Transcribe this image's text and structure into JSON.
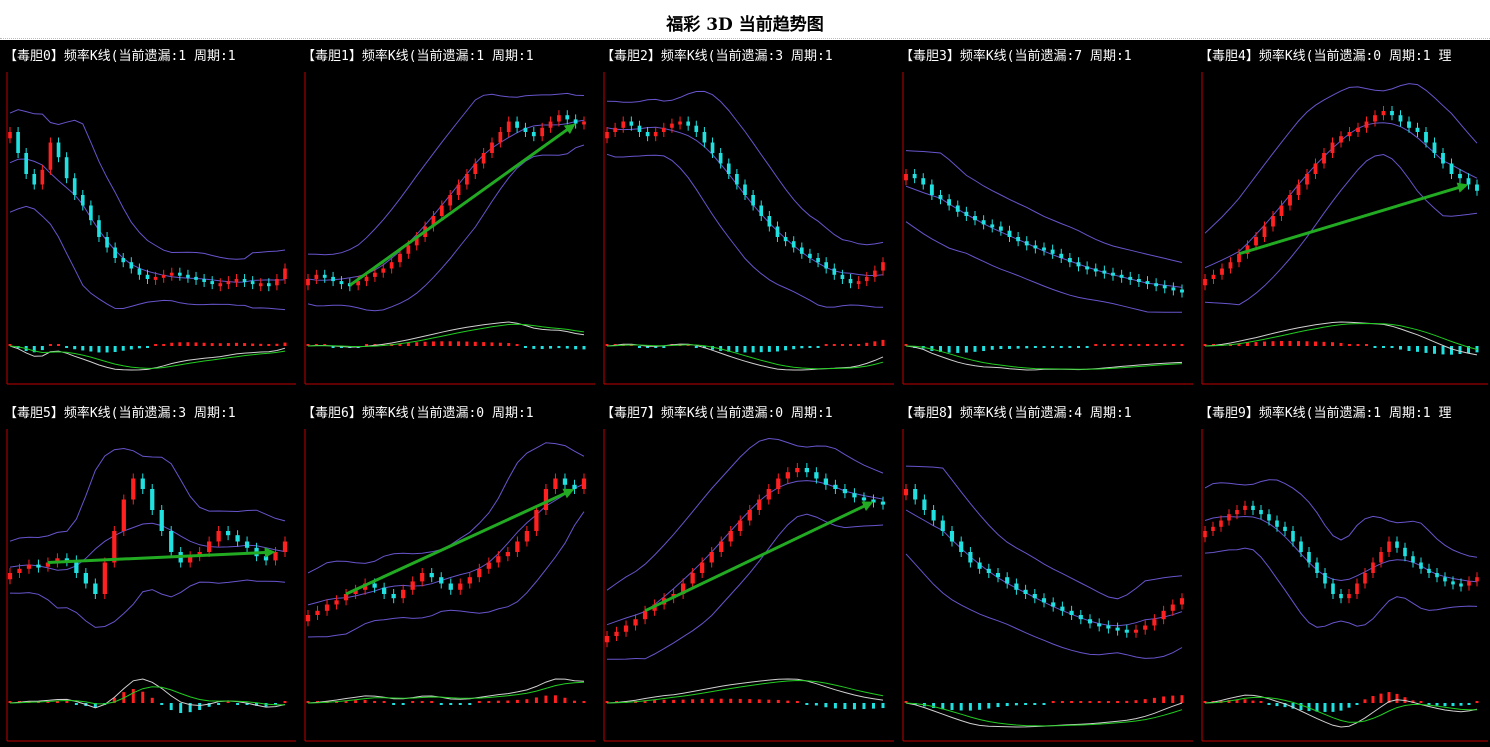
{
  "page": {
    "title": "福彩 3D 当前趋势图"
  },
  "colors": {
    "background": "#000000",
    "up_candle": "#ff2020",
    "down_candle": "#20e0e0",
    "band_line": "#6655cc",
    "axis": "#c00000",
    "trend_arrow": "#22aa22",
    "dif_line": "#d0d0d0",
    "dea_line": "#22cc22"
  },
  "chart_data": [
    {
      "type": "candlestick",
      "title": "【毒胆0】频率K线(当前遗漏:1 周期:1",
      "has_arrow": false,
      "closes": [
        80,
        70,
        60,
        55,
        62,
        75,
        68,
        58,
        50,
        45,
        38,
        30,
        25,
        20,
        18,
        15,
        12,
        10,
        11,
        12,
        13,
        12,
        11,
        10,
        9,
        8,
        8,
        9,
        10,
        9,
        8,
        8,
        7,
        10,
        15
      ]
    },
    {
      "type": "candlestick",
      "title": "【毒胆1】频率K线(当前遗漏:1 周期:1",
      "has_arrow": true,
      "closes": [
        10,
        12,
        11,
        9,
        8,
        7,
        9,
        11,
        13,
        15,
        18,
        22,
        26,
        30,
        35,
        40,
        45,
        50,
        55,
        60,
        65,
        70,
        75,
        80,
        85,
        82,
        80,
        78,
        82,
        85,
        88,
        86,
        84,
        85
      ]
    },
    {
      "type": "candlestick",
      "title": "【毒胆2】频率K线(当前遗漏:3 周期:1",
      "has_arrow": false,
      "closes": [
        80,
        82,
        85,
        83,
        80,
        78,
        80,
        82,
        84,
        85,
        83,
        80,
        75,
        70,
        65,
        60,
        55,
        50,
        45,
        40,
        35,
        30,
        28,
        25,
        22,
        20,
        18,
        15,
        12,
        10,
        8,
        9,
        11,
        14,
        18
      ]
    },
    {
      "type": "candlestick",
      "title": "【毒胆3】频率K线(当前遗漏:7 周期:1",
      "has_arrow": false,
      "closes": [
        60,
        58,
        55,
        50,
        48,
        45,
        42,
        40,
        38,
        36,
        35,
        33,
        30,
        28,
        26,
        25,
        24,
        22,
        20,
        18,
        16,
        15,
        14,
        13,
        12,
        11,
        10,
        9,
        8,
        7,
        6,
        5,
        4
      ]
    },
    {
      "type": "candlestick",
      "title": "【毒胆4】频率K线(当前遗漏:0 周期:1 理",
      "has_arrow": true,
      "closes": [
        10,
        12,
        15,
        18,
        22,
        26,
        30,
        35,
        40,
        45,
        50,
        55,
        60,
        65,
        70,
        75,
        78,
        80,
        82,
        85,
        88,
        90,
        88,
        85,
        82,
        80,
        75,
        70,
        65,
        60,
        58,
        55,
        52
      ]
    },
    {
      "type": "candlestick",
      "title": "【毒胆5】频率K线(当前遗漏:3 周期:1",
      "has_arrow": true,
      "closes": [
        40,
        42,
        44,
        43,
        45,
        47,
        46,
        40,
        35,
        30,
        45,
        60,
        75,
        85,
        80,
        70,
        60,
        50,
        45,
        48,
        50,
        55,
        60,
        58,
        55,
        52,
        48,
        46,
        50,
        55
      ]
    },
    {
      "type": "candlestick",
      "title": "【毒胆6】频率K线(当前遗漏:0 周期:1",
      "has_arrow": true,
      "closes": [
        20,
        22,
        25,
        27,
        30,
        32,
        35,
        33,
        30,
        28,
        32,
        36,
        40,
        38,
        35,
        32,
        35,
        38,
        42,
        45,
        48,
        50,
        55,
        60,
        70,
        80,
        85,
        82,
        80,
        85
      ]
    },
    {
      "type": "candlestick",
      "title": "【毒胆7】频率K线(当前遗漏:0 周期:1",
      "has_arrow": true,
      "closes": [
        10,
        12,
        15,
        18,
        22,
        25,
        28,
        30,
        35,
        40,
        45,
        50,
        55,
        60,
        65,
        70,
        75,
        80,
        85,
        88,
        90,
        88,
        85,
        82,
        80,
        78,
        76,
        75,
        74,
        73
      ]
    },
    {
      "type": "candlestick",
      "title": "【毒胆8】频率K线(当前遗漏:4 周期:1",
      "has_arrow": false,
      "closes": [
        80,
        75,
        70,
        65,
        60,
        55,
        50,
        45,
        42,
        40,
        38,
        35,
        32,
        30,
        28,
        26,
        24,
        22,
        20,
        18,
        16,
        15,
        14,
        13,
        12,
        13,
        15,
        18,
        22,
        25,
        28
      ]
    },
    {
      "type": "candlestick",
      "title": "【毒胆9】频率K线(当前遗漏:1 周期:1 理",
      "has_arrow": false,
      "closes": [
        60,
        62,
        65,
        68,
        70,
        72,
        70,
        68,
        65,
        62,
        60,
        55,
        50,
        45,
        40,
        35,
        30,
        28,
        30,
        35,
        40,
        45,
        50,
        55,
        52,
        48,
        45,
        42,
        40,
        38,
        36,
        35,
        34,
        36,
        38
      ]
    }
  ]
}
